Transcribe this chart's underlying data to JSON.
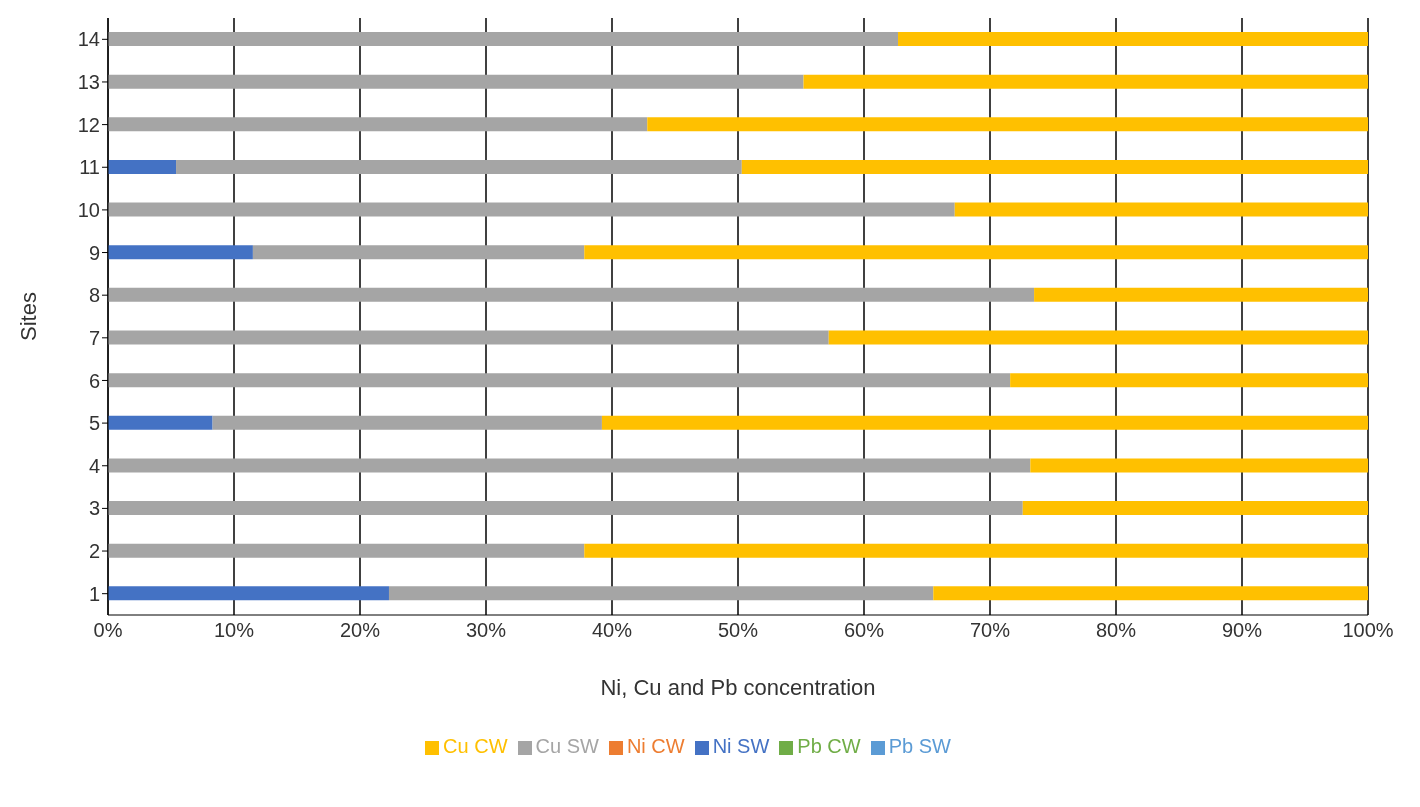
{
  "chart_data": {
    "type": "bar",
    "orientation": "horizontal",
    "stacked": true,
    "xlabel": "Ni, Cu and Pb concentration",
    "ylabel": "Sites",
    "categories": [
      "14",
      "13",
      "12",
      "11",
      "10",
      "9",
      "8",
      "7",
      "6",
      "5",
      "4",
      "3",
      "2",
      "1"
    ],
    "series": [
      {
        "name": "Ni SW",
        "color": "#4472c4",
        "values": [
          0,
          0,
          0,
          5.4,
          0,
          11.5,
          0,
          0,
          0,
          8.3,
          0,
          0,
          0,
          22.3
        ]
      },
      {
        "name": "Ni CW",
        "color": "#ed7d31",
        "values": [
          0,
          0,
          0,
          0,
          0,
          0,
          0,
          0,
          0,
          0,
          0,
          0,
          0,
          0
        ]
      },
      {
        "name": "Cu SW",
        "color": "#a5a5a5",
        "values": [
          62.7,
          55.2,
          42.8,
          44.9,
          67.2,
          26.3,
          73.5,
          57.2,
          71.6,
          30.9,
          73.2,
          72.6,
          37.8,
          43.2
        ]
      },
      {
        "name": "Cu CW",
        "color": "#ffc000",
        "values": [
          37.3,
          44.8,
          57.2,
          49.7,
          32.8,
          62.2,
          26.5,
          42.8,
          28.4,
          60.8,
          26.8,
          27.4,
          62.2,
          34.5
        ]
      },
      {
        "name": "Pb SW",
        "color": "#5b9bd5",
        "values": [
          0,
          0,
          0,
          0,
          0,
          0,
          0,
          0,
          0,
          0,
          0,
          0,
          0,
          0
        ]
      },
      {
        "name": "Pb CW",
        "color": "#70ad47",
        "values": [
          0,
          0,
          0,
          0,
          0,
          0,
          0,
          0,
          0,
          0,
          0,
          0,
          0,
          0
        ]
      }
    ],
    "xlim": [
      0,
      100
    ],
    "xticks": [
      {
        "value": 0,
        "label": "0%"
      },
      {
        "value": 10,
        "label": "10%"
      },
      {
        "value": 20,
        "label": "20%"
      },
      {
        "value": 30,
        "label": "30%"
      },
      {
        "value": 40,
        "label": "40%"
      },
      {
        "value": 50,
        "label": "50%"
      },
      {
        "value": 60,
        "label": "60%"
      },
      {
        "value": 70,
        "label": "70%"
      },
      {
        "value": 80,
        "label": "80%"
      },
      {
        "value": 90,
        "label": "90%"
      },
      {
        "value": 100,
        "label": "100%"
      }
    ],
    "grid": "x",
    "legend": "bottom"
  }
}
